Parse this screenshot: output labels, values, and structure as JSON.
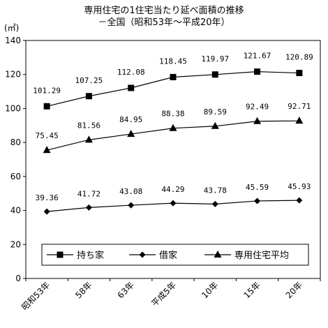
{
  "chart_data": {
    "type": "line",
    "title": "専用住宅の1住宅当たり延べ面積の推移",
    "subtitle": "－全国（昭和53年～平成20年）",
    "ylabel": "(㎡)",
    "ylim": [
      0,
      140
    ],
    "yticks": [
      0,
      20,
      40,
      60,
      80,
      100,
      120,
      140
    ],
    "grid": false,
    "legend_position": "bottom-inside",
    "categories": [
      "昭和53年",
      "58年",
      "63年",
      "平成5年",
      "10年",
      "15年",
      "20年"
    ],
    "series": [
      {
        "name": "持ち家",
        "marker": "square",
        "values": [
          101.29,
          107.25,
          112.08,
          118.45,
          119.97,
          121.67,
          120.89
        ]
      },
      {
        "name": "借家",
        "marker": "diamond",
        "values": [
          39.36,
          41.72,
          43.08,
          44.29,
          43.78,
          45.59,
          45.93
        ]
      },
      {
        "name": "専用住宅平均",
        "marker": "triangle",
        "values": [
          75.45,
          81.56,
          84.95,
          88.38,
          89.59,
          92.49,
          92.71
        ]
      }
    ]
  }
}
